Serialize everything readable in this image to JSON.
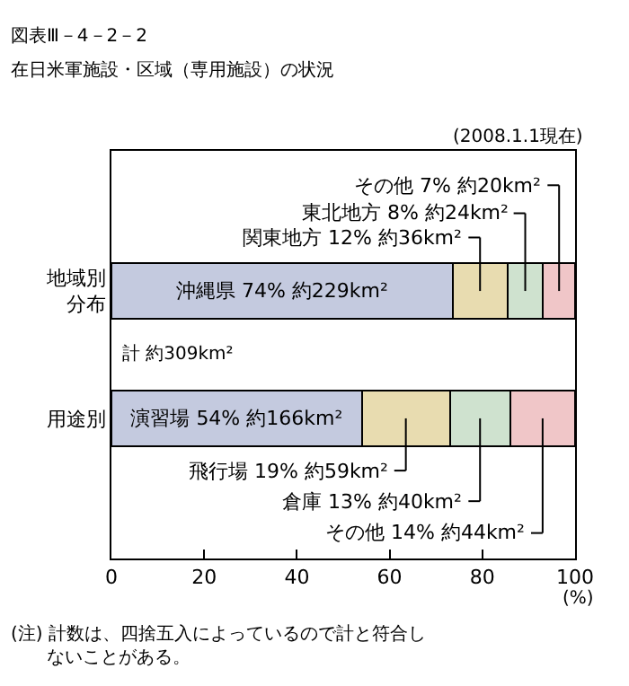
{
  "chart_data": {
    "type": "bar",
    "orientation": "horizontal",
    "stacked": true,
    "title": "図表Ⅲ－4－2－2",
    "subtitle": "在日米軍施設・区域（専用施設）の状況",
    "xlabel": "(%)",
    "categories": [
      "地域別分布",
      "用途別"
    ],
    "series": [
      {
        "color": "#c4cadf",
        "values": [
          73.6,
          54
        ],
        "value_labels": [
          "沖縄県 74% 約229km²",
          "演習場 54% 約166km²"
        ]
      },
      {
        "color": "#e8dcb0",
        "values": [
          11.8,
          19
        ],
        "value_labels": [
          "関東地方 12% 約36km²",
          "飛行場 19% 約59km²"
        ]
      },
      {
        "color": "#cfe2cf",
        "values": [
          7.7,
          13
        ],
        "value_labels": [
          "東北地方 8% 約24km²",
          "倉庫 13% 約40km²"
        ]
      },
      {
        "color": "#f0c6c8",
        "values": [
          6.9,
          14
        ],
        "value_labels": [
          "その他 7% 約20km²",
          "その他 14% 約44km²"
        ]
      }
    ],
    "xlim": [
      0,
      100
    ],
    "xticks": [
      0,
      20,
      40,
      60,
      80,
      100
    ],
    "annotations": [
      "(2008.1.1現在)",
      "計 約309km²",
      "(注) 計数は、四捨五入によっているので計と符合しないことがある。"
    ]
  }
}
